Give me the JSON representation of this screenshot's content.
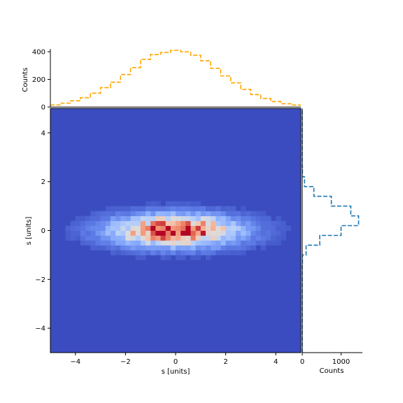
{
  "chart_data": [
    {
      "type": "heatmap",
      "name": "joint-histogram",
      "xlabel": "s [units]",
      "ylabel": "s [units]",
      "xlim": [
        -5,
        5
      ],
      "ylim": [
        -5,
        5
      ],
      "xticks": [
        "−4",
        "−2",
        "0",
        "2",
        "4"
      ],
      "yticks": [
        "−4",
        "−2",
        "0",
        "2",
        "4"
      ],
      "colormap": "coolwarm",
      "bins": 50,
      "density_shape": {
        "x_center": 0,
        "y_center": 0,
        "x_spread": 1.75,
        "y_spread": 0.45
      }
    },
    {
      "type": "histogram-step",
      "name": "top-marginal",
      "ylabel": "Counts",
      "ylim": [
        0,
        420
      ],
      "yticks": [
        "0",
        "200",
        "400"
      ],
      "color": "#ffa500",
      "linestyle": "dashed",
      "bin_edges": [
        -5,
        -4.6,
        -4.2,
        -3.8,
        -3.4,
        -3.0,
        -2.6,
        -2.2,
        -1.8,
        -1.4,
        -1.0,
        -0.6,
        -0.2,
        0.2,
        0.6,
        1.0,
        1.4,
        1.8,
        2.2,
        2.6,
        3.0,
        3.4,
        3.8,
        4.2,
        4.6,
        5.0
      ],
      "values": [
        15,
        28,
        45,
        68,
        100,
        140,
        180,
        235,
        285,
        345,
        380,
        395,
        410,
        400,
        375,
        335,
        280,
        225,
        175,
        128,
        90,
        62,
        40,
        24,
        14
      ]
    },
    {
      "type": "histogram-step",
      "name": "right-marginal",
      "xlabel": "Counts",
      "xlim": [
        0,
        1550
      ],
      "xticks": [
        "0",
        "1000"
      ],
      "color": "#1f77b4",
      "linestyle": "dashed",
      "orientation": "horizontal",
      "bin_edges": [
        -5,
        -4.6,
        -4.2,
        -3.8,
        -3.4,
        -3.0,
        -2.6,
        -2.2,
        -1.8,
        -1.4,
        -1.0,
        -0.6,
        -0.2,
        0.2,
        0.6,
        1.0,
        1.4,
        1.8,
        2.2,
        2.6,
        3.0,
        3.4,
        3.8,
        4.2,
        4.6,
        5.0
      ],
      "values": [
        0,
        0,
        0,
        0,
        0,
        0,
        0,
        0,
        0,
        5,
        100,
        450,
        1000,
        1450,
        1250,
        750,
        300,
        60,
        5,
        0,
        0,
        0,
        0,
        0,
        0
      ]
    }
  ]
}
